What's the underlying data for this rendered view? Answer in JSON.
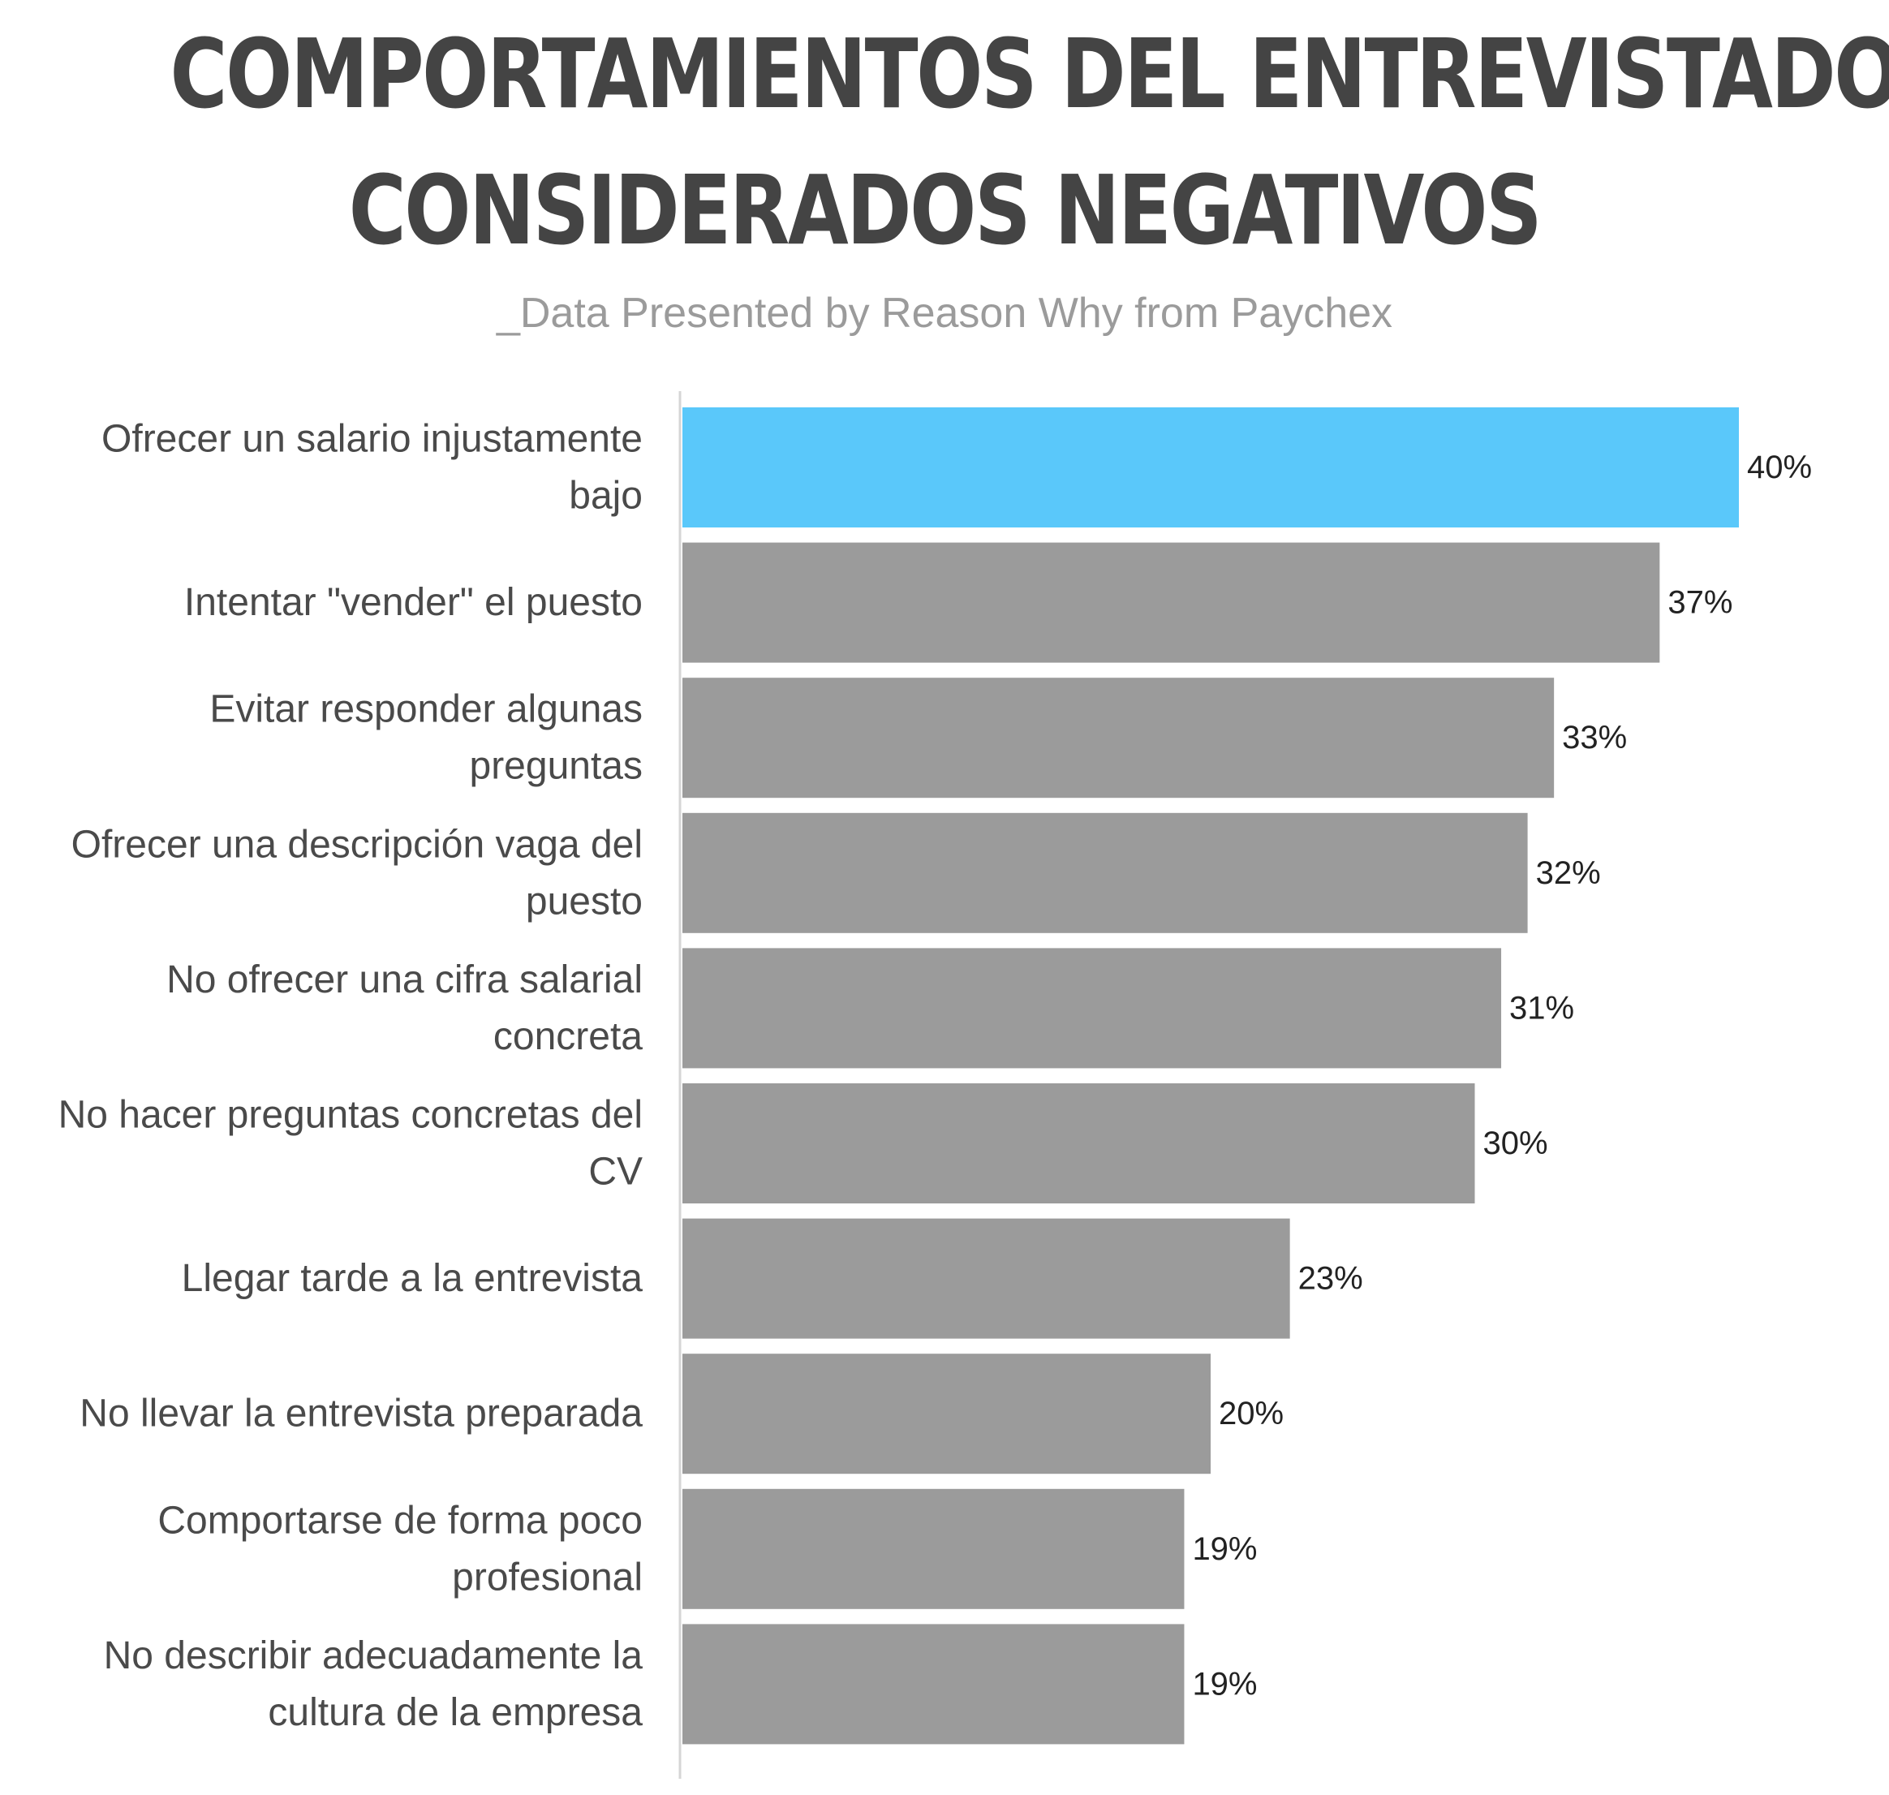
{
  "chart_data": {
    "type": "bar",
    "orientation": "horizontal",
    "title": "COMPORTAMIENTOS DEL ENTREVISTADOR CONSIDERADOS NEGATIVOS",
    "title_lines": [
      "COMPORTAMIENTOS DEL ENTREVISTADOR",
      "CONSIDERADOS NEGATIVOS"
    ],
    "subtitle": "_Data Presented by Reason Why from Paychex",
    "categories": [
      [
        "Ofrecer un salario injustamente",
        "bajo"
      ],
      [
        "Intentar \"vender\" el puesto"
      ],
      [
        "Evitar responder algunas",
        "preguntas"
      ],
      [
        "Ofrecer una descripción vaga del",
        "puesto"
      ],
      [
        "No ofrecer una cifra salarial",
        "concreta"
      ],
      [
        "No hacer preguntas concretas del",
        "CV"
      ],
      [
        "Llegar tarde a la entrevista"
      ],
      [
        "No llevar la entrevista preparada"
      ],
      [
        "Comportarse de forma poco",
        "profesional"
      ],
      [
        "No describir adecuadamente la",
        "cultura de la empresa"
      ]
    ],
    "values": [
      40,
      37,
      33,
      32,
      31,
      30,
      23,
      20,
      19,
      19
    ],
    "value_labels": [
      "40%",
      "37%",
      "33%",
      "32%",
      "31%",
      "30%",
      "23%",
      "20%",
      "19%",
      "19%"
    ],
    "unit": "%",
    "xlim": [
      0,
      40
    ],
    "grid": false,
    "legend": "none",
    "highlight_index": 0,
    "colors": {
      "highlight": "#5ac8fa",
      "bar": "#9b9b9b",
      "axis": "#d6d6d6",
      "title": "#444444",
      "subtitle": "#9b9b9b"
    }
  }
}
